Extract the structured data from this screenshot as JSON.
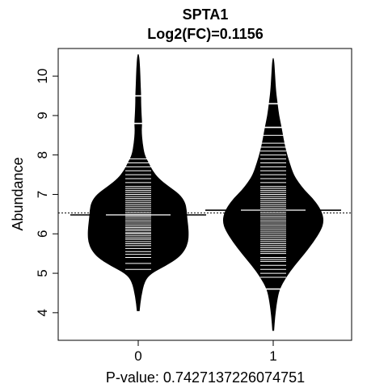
{
  "chart_data": {
    "type": "beanplot",
    "title": "SPTA1",
    "subtitle": "Log2(FC)=0.1156",
    "ylabel": "Abundance",
    "xlabel": "P-value: 0.7427137226074751",
    "categories": [
      "0",
      "1"
    ],
    "ylim": [
      3.3,
      10.7
    ],
    "yticks": [
      4,
      5,
      6,
      7,
      8,
      9,
      10
    ],
    "overall_mean": 6.53,
    "colors": {
      "fill": "#000000",
      "lines": "#ffffff",
      "background": "#ffffff"
    },
    "groups": [
      {
        "name": "0",
        "mean": 6.48,
        "min": 4.05,
        "max": 10.55,
        "outliers": [
          9.5,
          8.8
        ],
        "density": [
          [
            4.05,
            0.02
          ],
          [
            4.4,
            0.05
          ],
          [
            4.8,
            0.12
          ],
          [
            5.0,
            0.25
          ],
          [
            5.2,
            0.55
          ],
          [
            5.4,
            0.8
          ],
          [
            5.6,
            0.93
          ],
          [
            5.8,
            0.99
          ],
          [
            6.0,
            1.0
          ],
          [
            6.2,
            0.99
          ],
          [
            6.4,
            0.97
          ],
          [
            6.6,
            0.96
          ],
          [
            6.8,
            0.93
          ],
          [
            7.0,
            0.82
          ],
          [
            7.2,
            0.6
          ],
          [
            7.4,
            0.4
          ],
          [
            7.6,
            0.28
          ],
          [
            7.8,
            0.2
          ],
          [
            8.0,
            0.12
          ],
          [
            8.3,
            0.08
          ],
          [
            8.6,
            0.06
          ],
          [
            8.8,
            0.07
          ],
          [
            9.0,
            0.06
          ],
          [
            9.3,
            0.05
          ],
          [
            9.5,
            0.05
          ],
          [
            9.8,
            0.04
          ],
          [
            10.2,
            0.03
          ],
          [
            10.55,
            0.01
          ]
        ],
        "values": [
          5.1,
          5.25,
          5.4,
          5.48,
          5.55,
          5.63,
          5.7,
          5.75,
          5.8,
          5.86,
          5.9,
          5.95,
          6.0,
          6.03,
          6.08,
          6.12,
          6.16,
          6.2,
          6.25,
          6.3,
          6.35,
          6.4,
          6.45,
          6.5,
          6.55,
          6.6,
          6.65,
          6.7,
          6.75,
          6.8,
          6.85,
          6.9,
          6.95,
          7.0,
          7.05,
          7.1,
          7.15,
          7.2,
          7.3,
          7.4,
          7.5,
          7.6,
          7.7,
          7.8,
          7.9,
          8.8,
          9.5
        ]
      },
      {
        "name": "1",
        "mean": 6.6,
        "min": 3.55,
        "max": 10.45,
        "outliers": [
          9.3,
          8.7,
          4.6
        ],
        "density": [
          [
            3.55,
            0.01
          ],
          [
            3.9,
            0.03
          ],
          [
            4.3,
            0.07
          ],
          [
            4.6,
            0.12
          ],
          [
            4.9,
            0.25
          ],
          [
            5.2,
            0.42
          ],
          [
            5.5,
            0.62
          ],
          [
            5.8,
            0.8
          ],
          [
            6.1,
            0.95
          ],
          [
            6.3,
            1.0
          ],
          [
            6.5,
            0.98
          ],
          [
            6.7,
            0.9
          ],
          [
            6.9,
            0.78
          ],
          [
            7.1,
            0.62
          ],
          [
            7.3,
            0.5
          ],
          [
            7.5,
            0.4
          ],
          [
            7.8,
            0.32
          ],
          [
            8.1,
            0.25
          ],
          [
            8.4,
            0.2
          ],
          [
            8.7,
            0.16
          ],
          [
            9.0,
            0.11
          ],
          [
            9.3,
            0.08
          ],
          [
            9.6,
            0.05
          ],
          [
            10.0,
            0.03
          ],
          [
            10.45,
            0.01
          ]
        ],
        "values": [
          4.6,
          4.9,
          5.0,
          5.1,
          5.2,
          5.3,
          5.35,
          5.4,
          5.5,
          5.55,
          5.6,
          5.65,
          5.7,
          5.75,
          5.8,
          5.85,
          5.9,
          5.95,
          6.0,
          6.05,
          6.1,
          6.15,
          6.2,
          6.25,
          6.3,
          6.35,
          6.4,
          6.45,
          6.5,
          6.55,
          6.6,
          6.65,
          6.7,
          6.75,
          6.8,
          6.85,
          6.9,
          6.95,
          7.0,
          7.05,
          7.1,
          7.15,
          7.2,
          7.3,
          7.4,
          7.5,
          7.6,
          7.7,
          7.8,
          7.9,
          8.0,
          8.1,
          8.2,
          8.3,
          8.5,
          8.7,
          9.3
        ]
      }
    ]
  }
}
